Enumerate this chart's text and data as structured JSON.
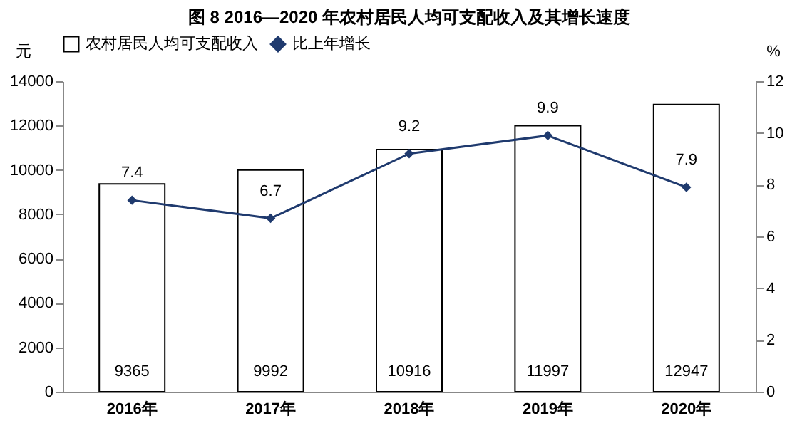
{
  "chart_data": {
    "type": "bar",
    "title": "图 8  2016—2020 年农村居民人均可支配收入及其增长速度",
    "ylabel": "元",
    "y2label": "%",
    "categories": [
      "2016年",
      "2017年",
      "2018年",
      "2019年",
      "2020年"
    ],
    "series": [
      {
        "name": "农村居民人均可支配收入",
        "color": "#ffffff",
        "values": [
          9365,
          9992,
          10916,
          11997,
          12947
        ]
      },
      {
        "name": "比上年增长",
        "type": "line",
        "axis": "y2",
        "color": "#1f3a6e",
        "values": [
          7.4,
          6.7,
          9.2,
          9.9,
          7.9
        ]
      }
    ],
    "ylim": [
      0,
      14000
    ],
    "yticks": [
      0,
      2000,
      4000,
      6000,
      8000,
      10000,
      12000,
      14000
    ],
    "y2lim": [
      0,
      12
    ],
    "y2ticks": [
      0,
      2,
      4,
      6,
      8,
      10,
      12
    ],
    "data_labels": true,
    "legend": "top",
    "marker": "diamond",
    "line_style": "solid",
    "grid": false
  }
}
